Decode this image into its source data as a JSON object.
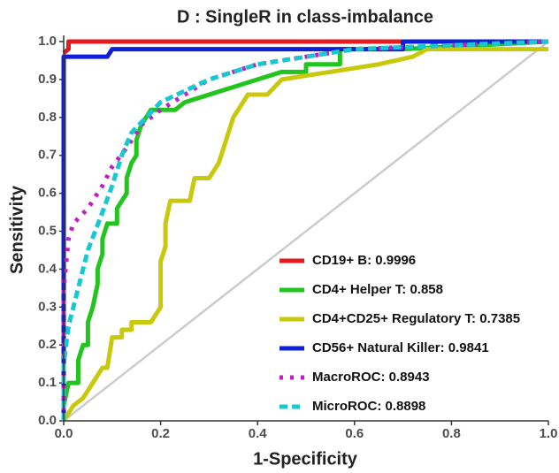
{
  "chart_data": {
    "type": "line",
    "title": "D : SingleR in class-imbalance",
    "x_label": "1-Specificity",
    "y_label": "Sensitivity",
    "xlim": [
      0,
      1
    ],
    "ylim": [
      0,
      1
    ],
    "xticks": [
      {
        "value": 0,
        "label": "0.0"
      },
      0.2,
      0.4,
      0.6,
      0.8,
      {
        "value": 1,
        "label": "1.0"
      }
    ],
    "yticks": [
      {
        "value": 0,
        "label": "0.0"
      },
      0.1,
      0.2,
      0.3,
      0.4,
      0.5,
      0.6,
      0.7,
      0.8,
      0.9,
      {
        "value": 1,
        "label": "1.0"
      }
    ],
    "legend": "lower right",
    "diagonal_color": "#cccccc",
    "series": [
      {
        "name": "CD19+ B: 0.9996",
        "color": "#e41a1c",
        "dash": "solid",
        "x": [
          0,
          0.01,
          0.01,
          1
        ],
        "values": [
          0.97,
          0.98,
          1.0,
          1.0
        ]
      },
      {
        "name": "CD4+ Helper T: 0.858",
        "color": "#22c51d",
        "dash": "solid",
        "x": [
          0,
          0,
          0.01,
          0.03,
          0.03,
          0.04,
          0.05,
          0.05,
          0.06,
          0.07,
          0.07,
          0.08,
          0.08,
          0.09,
          0.11,
          0.11,
          0.12,
          0.13,
          0.13,
          0.14,
          0.15,
          0.15,
          0.16,
          0.17,
          0.18,
          0.23,
          0.25,
          0.3,
          0.35,
          0.4,
          0.45,
          0.5,
          0.5,
          0.57,
          0.57,
          0.7,
          1
        ],
        "values": [
          0,
          0.04,
          0.1,
          0.1,
          0.16,
          0.2,
          0.2,
          0.26,
          0.3,
          0.36,
          0.4,
          0.44,
          0.48,
          0.52,
          0.52,
          0.56,
          0.58,
          0.6,
          0.64,
          0.68,
          0.7,
          0.74,
          0.78,
          0.8,
          0.82,
          0.82,
          0.84,
          0.86,
          0.88,
          0.9,
          0.92,
          0.92,
          0.94,
          0.94,
          0.98,
          0.98,
          1.0
        ]
      },
      {
        "name": "CD4+CD25+ Regulatory T: 0.7385",
        "color": "#c9c90c",
        "dash": "solid",
        "x": [
          0,
          0.01,
          0.02,
          0.04,
          0.05,
          0.06,
          0.07,
          0.08,
          0.09,
          0.1,
          0.12,
          0.12,
          0.14,
          0.14,
          0.18,
          0.2,
          0.2,
          0.21,
          0.21,
          0.22,
          0.26,
          0.27,
          0.3,
          0.32,
          0.33,
          0.34,
          0.35,
          0.36,
          0.38,
          0.42,
          0.45,
          0.55,
          0.65,
          0.72,
          0.75,
          1
        ],
        "values": [
          0,
          0.02,
          0.04,
          0.06,
          0.08,
          0.1,
          0.12,
          0.14,
          0.14,
          0.22,
          0.22,
          0.24,
          0.24,
          0.26,
          0.26,
          0.3,
          0.42,
          0.46,
          0.52,
          0.58,
          0.58,
          0.64,
          0.64,
          0.68,
          0.72,
          0.76,
          0.8,
          0.82,
          0.86,
          0.86,
          0.9,
          0.92,
          0.94,
          0.96,
          0.98,
          0.98
        ]
      },
      {
        "name": "CD56+ Natural Killer: 0.9841",
        "color": "#1020d8",
        "dash": "solid",
        "x": [
          0,
          0,
          0.09,
          0.1,
          0.7,
          0.7,
          1
        ],
        "values": [
          0,
          0.96,
          0.96,
          0.98,
          0.98,
          1.0,
          1.0
        ]
      },
      {
        "name": "MacroROC: 0.8943",
        "color": "#c020c8",
        "dash": "dotted",
        "x": [
          0,
          0,
          0.01,
          0.02,
          0.05,
          0.08,
          0.1,
          0.13,
          0.16,
          0.2,
          0.25,
          0.3,
          0.4,
          0.5,
          0.6,
          0.8,
          1
        ],
        "values": [
          0,
          0.35,
          0.48,
          0.52,
          0.56,
          0.62,
          0.67,
          0.72,
          0.78,
          0.82,
          0.86,
          0.9,
          0.94,
          0.96,
          0.98,
          0.99,
          1.0
        ]
      },
      {
        "name": "MicroROC: 0.8898",
        "color": "#18c8d0",
        "dash": "dashed",
        "x": [
          0,
          0,
          0.01,
          0.03,
          0.05,
          0.08,
          0.1,
          0.12,
          0.14,
          0.17,
          0.2,
          0.25,
          0.3,
          0.4,
          0.5,
          0.6,
          0.8,
          1
        ],
        "values": [
          0,
          0.15,
          0.25,
          0.35,
          0.45,
          0.55,
          0.62,
          0.7,
          0.76,
          0.8,
          0.84,
          0.87,
          0.9,
          0.94,
          0.96,
          0.98,
          0.99,
          1.0
        ]
      }
    ]
  }
}
